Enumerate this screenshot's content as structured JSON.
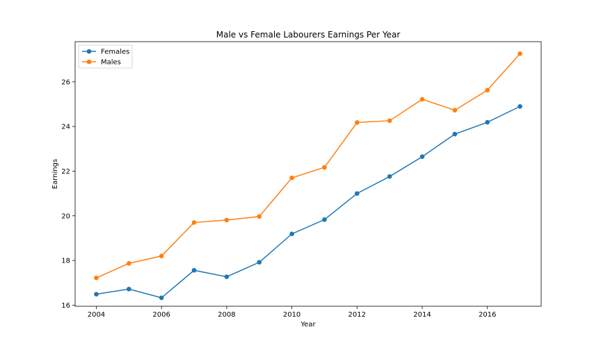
{
  "chart_data": {
    "type": "line",
    "title": "Male vs Female Labourers Earnings Per Year",
    "xlabel": "Year",
    "ylabel": "Earnings",
    "x": [
      2004,
      2005,
      2006,
      2007,
      2008,
      2009,
      2010,
      2011,
      2012,
      2013,
      2014,
      2015,
      2016,
      2017
    ],
    "series": [
      {
        "name": "Females",
        "color": "#1f77b4",
        "marker": "circle",
        "values": [
          16.49,
          16.72,
          16.33,
          17.56,
          17.27,
          17.92,
          19.19,
          19.83,
          21.0,
          21.76,
          22.65,
          23.66,
          24.19,
          24.9
        ]
      },
      {
        "name": "Males",
        "color": "#ff7f0e",
        "marker": "circle",
        "values": [
          17.22,
          17.87,
          18.2,
          19.7,
          19.81,
          19.97,
          21.7,
          22.17,
          24.18,
          24.26,
          25.22,
          24.73,
          25.63,
          27.26
        ]
      }
    ],
    "xticks": [
      2004,
      2006,
      2008,
      2010,
      2012,
      2014,
      2016
    ],
    "yticks": [
      16,
      18,
      20,
      22,
      24,
      26
    ],
    "xlim": [
      2003.35,
      2017.65
    ],
    "ylim": [
      15.95,
      27.8
    ],
    "grid": false,
    "legend": "top-left"
  }
}
